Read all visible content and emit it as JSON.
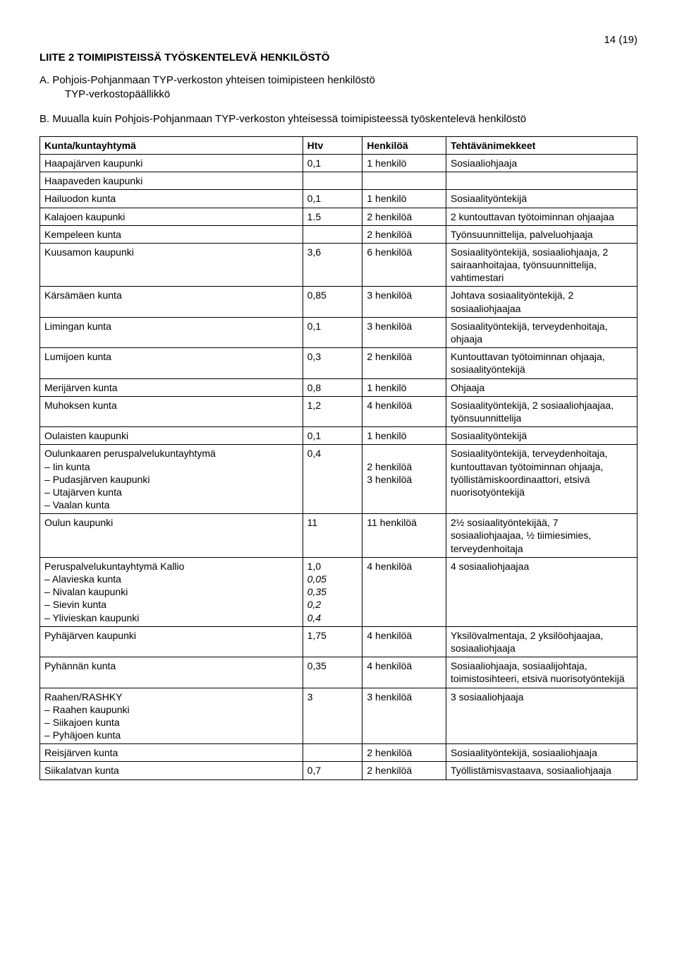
{
  "page_number": "14 (19)",
  "heading": "LIITE 2 TOIMIPISTEISSÄ TYÖSKENTELEVÄ HENKILÖSTÖ",
  "section_a": {
    "title": "A. Pohjois-Pohjanmaan TYP-verkoston yhteisen toimipisteen henkilöstö",
    "sub": "TYP-verkostopäällikkö"
  },
  "section_b": "B. Muualla kuin Pohjois-Pohjanmaan TYP-verkoston yhteisessä toimipisteessä työskentelevä henkilöstö",
  "table": {
    "headers": [
      "Kunta/kuntayhtymä",
      "Htv",
      "Henkilöä",
      "Tehtävänimekkeet"
    ],
    "rows": [
      {
        "k": "Haapajärven kaupunki",
        "htv": "0,1",
        "hen": "1 henkilö",
        "teh": "Sosiaaliohjaaja"
      },
      {
        "k": "Haapaveden kaupunki",
        "htv": "",
        "hen": "",
        "teh": ""
      },
      {
        "k": "Hailuodon kunta",
        "htv": "0,1",
        "hen": "1 henkilö",
        "teh": "Sosiaalityöntekijä"
      },
      {
        "k": "Kalajoen kaupunki",
        "htv": "1.5",
        "hen": "2 henkilöä",
        "teh": "2 kuntouttavan työtoiminnan ohjaajaa"
      },
      {
        "k": "Kempeleen kunta",
        "htv": "",
        "hen": "2 henkilöä",
        "teh": "Työnsuunnittelija, palveluohjaaja"
      },
      {
        "k": "Kuusamon kaupunki",
        "htv": "3,6",
        "hen": "6 henkilöä",
        "teh": "Sosiaalityöntekijä, sosiaaliohjaaja, 2 sairaanhoitajaa, työnsuunnittelija, vahtimestari"
      },
      {
        "k": "Kärsämäen kunta",
        "htv": "0,85",
        "hen": "3 henkilöä",
        "teh": "Johtava sosiaalityöntekijä, 2 sosiaaliohjaajaa"
      },
      {
        "k": "Limingan kunta",
        "htv": "0,1",
        "hen": "3 henkilöä",
        "teh": "Sosiaalityöntekijä, terveydenhoitaja, ohjaaja"
      },
      {
        "k": "Lumijoen kunta",
        "htv": "0,3",
        "hen": "2 henkilöä",
        "teh": "Kuntouttavan työtoiminnan ohjaaja, sosiaalityöntekijä"
      },
      {
        "k": "Merijärven kunta",
        "htv": "0,8",
        "hen": "1 henkilö",
        "teh": "Ohjaaja"
      },
      {
        "k": "Muhoksen kunta",
        "htv": "1,2",
        "hen": "4 henkilöä",
        "teh": "Sosiaalityöntekijä, 2 sosiaaliohjaajaa, työnsuunnittelija"
      },
      {
        "k": "Oulaisten kaupunki",
        "htv": "0,1",
        "hen": "1 henkilö",
        "teh": "Sosiaalityöntekijä"
      },
      {
        "k_multi": {
          "lead": "Oulunkaaren peruspalvelukuntayhtymä",
          "items": [
            "Iin kunta",
            "Pudasjärven kaupunki",
            "Utajärven kunta",
            "Vaalan kunta"
          ]
        },
        "htv": "0,4",
        "hen_lines": [
          "",
          "2 henkilöä",
          "3 henkilöä"
        ],
        "teh": "Sosiaalityöntekijä, terveydenhoitaja, kuntouttavan työtoiminnan ohjaaja, työllistämiskoordinaattori, etsivä nuorisotyöntekijä"
      },
      {
        "k": "Oulun kaupunki",
        "htv": "11",
        "hen": "11 henkilöä",
        "teh": "2½ sosiaalityöntekijää, 7 sosiaaliohjaajaa, ½ tiimiesimies, terveydenhoitaja"
      },
      {
        "k_multi": {
          "lead": "Peruspalvelukuntayhtymä Kallio",
          "items": [
            "Alavieska kunta",
            "Nivalan kaupunki",
            "Sievin kunta",
            "Ylivieskan kaupunki"
          ]
        },
        "htv_lines": [
          "1,0",
          "0,05",
          "0,35",
          "0,2",
          "0,4"
        ],
        "htv_italic_from": 1,
        "hen": "4 henkilöä",
        "teh": "4 sosiaaliohjaajaa"
      },
      {
        "k": "Pyhäjärven kaupunki",
        "htv": "1,75",
        "hen": "4 henkilöä",
        "teh": "Yksilövalmentaja, 2 yksilöohjaajaa, sosiaaliohjaaja"
      },
      {
        "k": "Pyhännän kunta",
        "htv": "0,35",
        "hen": "4 henkilöä",
        "teh": "Sosiaaliohjaaja, sosiaalijohtaja, toimistosihteeri, etsivä nuorisotyöntekijä"
      },
      {
        "k_multi": {
          "lead": "Raahen/RASHKY",
          "items": [
            "Raahen kaupunki",
            "Siikajoen kunta",
            "Pyhäjoen kunta"
          ]
        },
        "htv": "3",
        "hen": "3 henkilöä",
        "teh": "3 sosiaaliohjaaja"
      },
      {
        "k": "Reisjärven kunta",
        "htv": "",
        "hen": "2 henkilöä",
        "teh": "Sosiaalityöntekijä, sosiaaliohjaaja"
      },
      {
        "k": "Siikalatvan kunta",
        "htv": "0,7",
        "hen": "2 henkilöä",
        "teh": "Työllistämisvastaava, sosiaaliohjaaja"
      }
    ]
  }
}
